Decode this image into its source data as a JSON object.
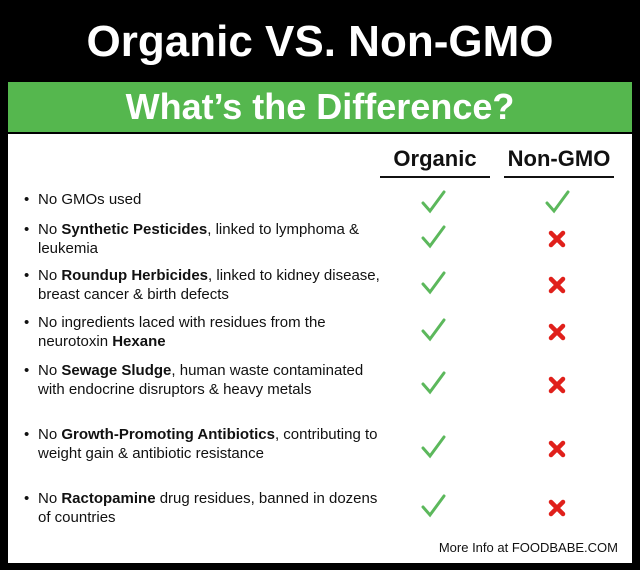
{
  "header": {
    "title": "Organic VS. Non-GMO",
    "subtitle": "What’s the Difference?"
  },
  "table": {
    "columns": [
      "Organic",
      "Non-GMO"
    ],
    "rows": [
      {
        "parts": [
          {
            "text": "No GMOs used",
            "bold": false
          }
        ],
        "organic": true,
        "non_gmo": true
      },
      {
        "parts": [
          {
            "text": "No ",
            "bold": false
          },
          {
            "text": "Synthetic Pesticides",
            "bold": true
          },
          {
            "text": ", linked to lymphoma & leukemia",
            "bold": false
          }
        ],
        "organic": true,
        "non_gmo": false
      },
      {
        "parts": [
          {
            "text": "No ",
            "bold": false
          },
          {
            "text": "Roundup Herbicides",
            "bold": true
          },
          {
            "text": ", linked to kidney disease, breast cancer & birth defects",
            "bold": false
          }
        ],
        "organic": true,
        "non_gmo": false
      },
      {
        "parts": [
          {
            "text": "No ingredients laced with residues from the neurotoxin ",
            "bold": false
          },
          {
            "text": "Hexane",
            "bold": true
          }
        ],
        "organic": true,
        "non_gmo": false
      },
      {
        "parts": [
          {
            "text": "No ",
            "bold": false
          },
          {
            "text": "Sewage Sludge",
            "bold": true
          },
          {
            "text": ", human waste contaminated with endocrine disruptors & heavy metals",
            "bold": false
          }
        ],
        "organic": true,
        "non_gmo": false
      },
      {
        "parts": [
          {
            "text": "No ",
            "bold": false
          },
          {
            "text": "Growth-Promoting Antibiotics",
            "bold": true
          },
          {
            "text": ", contributing to weight gain & antibiotic resistance",
            "bold": false
          }
        ],
        "organic": true,
        "non_gmo": false
      },
      {
        "parts": [
          {
            "text": "No ",
            "bold": false
          },
          {
            "text": "Ractopamine",
            "bold": true
          },
          {
            "text": " drug residues, banned in dozens of countries",
            "bold": false
          }
        ],
        "organic": true,
        "non_gmo": false
      }
    ]
  },
  "footer": "More Info at FOODBABE.COM"
}
